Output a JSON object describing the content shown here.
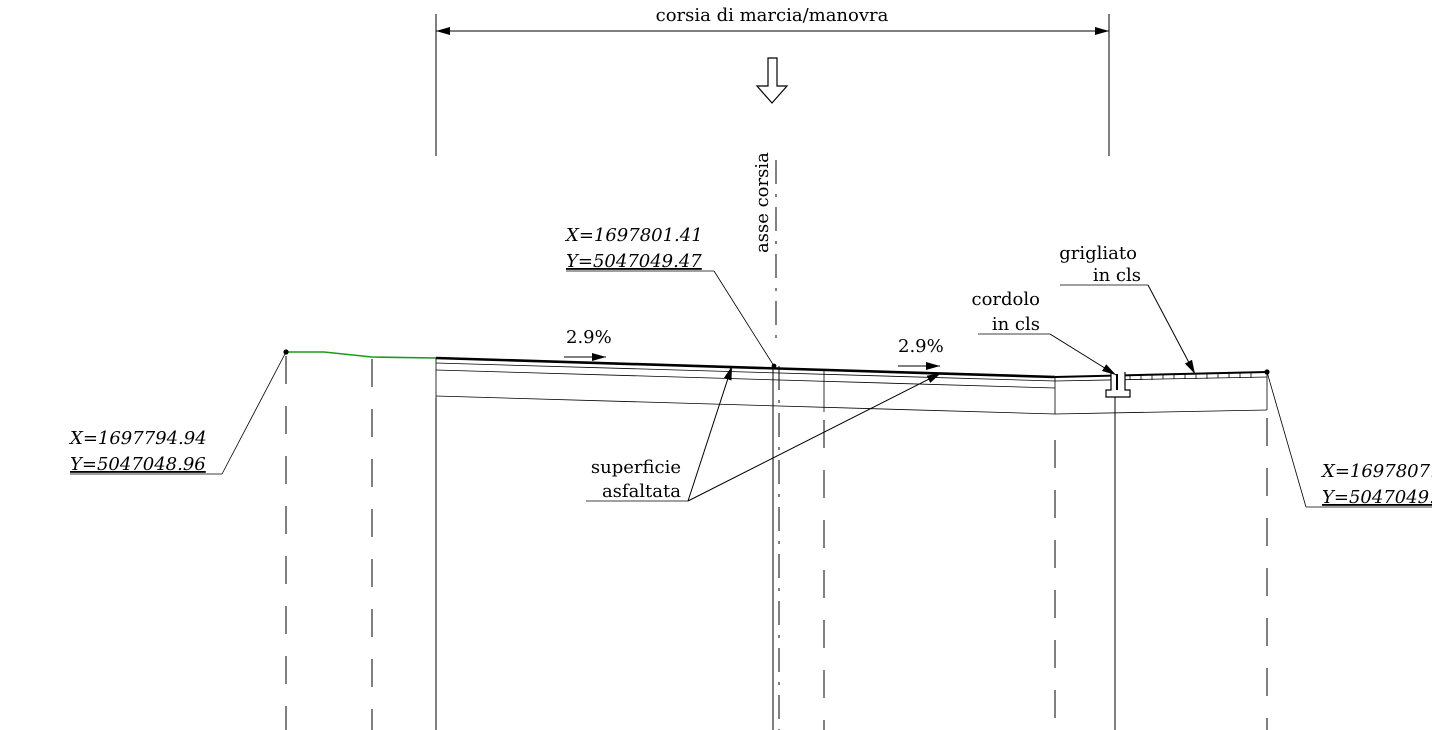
{
  "dimension": {
    "label": "corsia di marcia/manovra"
  },
  "axis": {
    "label": "asse corsia"
  },
  "points": {
    "left": {
      "x": "X=1697794.94",
      "y": "Y=5047048.96"
    },
    "center": {
      "x": "X=1697801.41",
      "y": "Y=5047049.47"
    },
    "right": {
      "x": "X=1697807.",
      "y": "Y=5047049."
    }
  },
  "slopes": {
    "left": "2.9%",
    "right": "2.9%"
  },
  "labels": {
    "surface_line1": "superficie",
    "surface_line2": "asfaltata",
    "curb_line1": "cordolo",
    "curb_line2": "in cls",
    "grating_line1": "grigliato",
    "grating_line2": "in cls"
  },
  "colors": {
    "ground_line": "#1a9a1a",
    "ink": "#000000"
  }
}
